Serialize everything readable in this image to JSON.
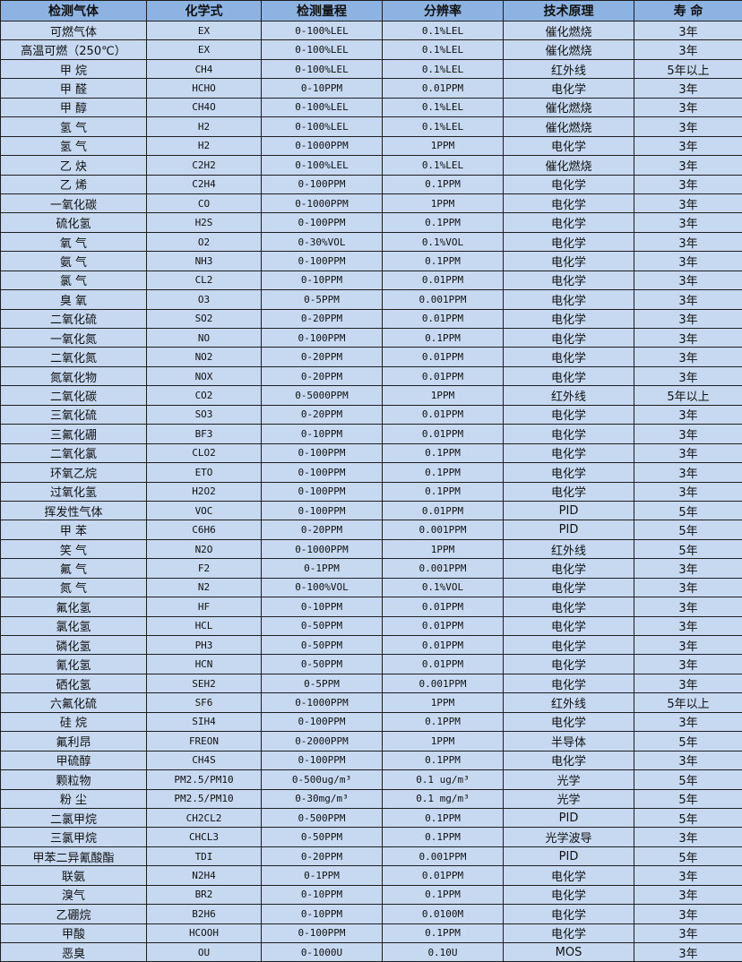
{
  "headers": [
    "检测气体",
    "化学式",
    "检测量程",
    "分辨率",
    "技术原理",
    "寿 命"
  ],
  "rows": [
    [
      "可燃气体",
      "EX",
      "0-100%LEL",
      "0.1%LEL",
      "催化燃烧",
      "3年"
    ],
    [
      "高温可燃（250℃）",
      "EX",
      "0-100%LEL",
      "0.1%LEL",
      "催化燃烧",
      "3年"
    ],
    [
      "甲 烷",
      "CH4",
      "0-100%LEL",
      "0.1%LEL",
      "红外线",
      "5年以上"
    ],
    [
      "甲 醛",
      "HCHO",
      "0-10PPM",
      "0.01PPM",
      "电化学",
      "3年"
    ],
    [
      "甲 醇",
      "CH4O",
      "0-100%LEL",
      "0.1%LEL",
      "催化燃烧",
      "3年"
    ],
    [
      "氢 气",
      "H2",
      "0-100%LEL",
      "0.1%LEL",
      "催化燃烧",
      "3年"
    ],
    [
      "氢 气",
      "H2",
      "0-1000PPM",
      "1PPM",
      "电化学",
      "3年"
    ],
    [
      "乙 炔",
      "C2H2",
      "0-100%LEL",
      "0.1%LEL",
      "催化燃烧",
      "3年"
    ],
    [
      "乙 烯",
      "C2H4",
      "0-100PPM",
      "0.1PPM",
      "电化学",
      "3年"
    ],
    [
      "一氧化碳",
      "CO",
      "0-1000PPM",
      "1PPM",
      "电化学",
      "3年"
    ],
    [
      "硫化氢",
      "H2S",
      "0-100PPM",
      "0.1PPM",
      "电化学",
      "3年"
    ],
    [
      "氧 气",
      "O2",
      "0-30%VOL",
      "0.1%VOL",
      "电化学",
      "3年"
    ],
    [
      "氨 气",
      "NH3",
      "0-100PPM",
      "0.1PPM",
      "电化学",
      "3年"
    ],
    [
      "氯 气",
      "CL2",
      "0-10PPM",
      "0.01PPM",
      "电化学",
      "3年"
    ],
    [
      "臭 氧",
      "O3",
      "0-5PPM",
      "0.001PPM",
      "电化学",
      "3年"
    ],
    [
      "二氧化硫",
      "SO2",
      "0-20PPM",
      "0.01PPM",
      "电化学",
      "3年"
    ],
    [
      "一氧化氮",
      "NO",
      "0-100PPM",
      "0.1PPM",
      "电化学",
      "3年"
    ],
    [
      "二氧化氮",
      "NO2",
      "0-20PPM",
      "0.01PPM",
      "电化学",
      "3年"
    ],
    [
      "氮氧化物",
      "NOX",
      "0-20PPM",
      "0.01PPM",
      "电化学",
      "3年"
    ],
    [
      "二氧化碳",
      "CO2",
      "0-5000PPM",
      "1PPM",
      "红外线",
      "5年以上"
    ],
    [
      "三氧化硫",
      "SO3",
      "0-20PPM",
      "0.01PPM",
      "电化学",
      "3年"
    ],
    [
      "三氟化硼",
      "BF3",
      "0-10PPM",
      "0.01PPM",
      "电化学",
      "3年"
    ],
    [
      "二氧化氯",
      "CLO2",
      "0-100PPM",
      "0.1PPM",
      "电化学",
      "3年"
    ],
    [
      "环氧乙烷",
      "ETO",
      "0-100PPM",
      "0.1PPM",
      "电化学",
      "3年"
    ],
    [
      "过氧化氢",
      "H2O2",
      "0-100PPM",
      "0.1PPM",
      "电化学",
      "3年"
    ],
    [
      "挥发性气体",
      "VOC",
      "0-100PPM",
      "0.01PPM",
      "PID",
      "5年"
    ],
    [
      "甲 苯",
      "C6H6",
      "0-20PPM",
      "0.001PPM",
      "PID",
      "5年"
    ],
    [
      "笑 气",
      "N2O",
      "0-1000PPM",
      "1PPM",
      "红外线",
      "5年"
    ],
    [
      "氟 气",
      "F2",
      "0-1PPM",
      "0.001PPM",
      "电化学",
      "3年"
    ],
    [
      "氮 气",
      "N2",
      "0-100%VOL",
      "0.1%VOL",
      "电化学",
      "3年"
    ],
    [
      "氟化氢",
      "HF",
      "0-10PPM",
      "0.01PPM",
      "电化学",
      "3年"
    ],
    [
      "氯化氢",
      "HCL",
      "0-50PPM",
      "0.01PPM",
      "电化学",
      "3年"
    ],
    [
      "磷化氢",
      "PH3",
      "0-50PPM",
      "0.01PPM",
      "电化学",
      "3年"
    ],
    [
      "氰化氢",
      "HCN",
      "0-50PPM",
      "0.01PPM",
      "电化学",
      "3年"
    ],
    [
      "硒化氢",
      "SEH2",
      "0-5PPM",
      "0.001PPM",
      "电化学",
      "3年"
    ],
    [
      "六氟化硫",
      "SF6",
      "0-1000PPM",
      "1PPM",
      "红外线",
      "5年以上"
    ],
    [
      "硅 烷",
      "SIH4",
      "0-100PPM",
      "0.1PPM",
      "电化学",
      "3年"
    ],
    [
      "氟利昂",
      "FREON",
      "0-2000PPM",
      "1PPM",
      "半导体",
      "5年"
    ],
    [
      "甲硫醇",
      "CH4S",
      "0-100PPM",
      "0.1PPM",
      "电化学",
      "3年"
    ],
    [
      "颗粒物",
      "PM2.5/PM10",
      "0-500ug/m³",
      "0.1 ug/m³",
      "光学",
      "5年"
    ],
    [
      "粉 尘",
      "PM2.5/PM10",
      "0-30mg/m³",
      "0.1 mg/m³",
      "光学",
      "5年"
    ],
    [
      "二氯甲烷",
      "CH2CL2",
      "0-500PPM",
      "0.1PPM",
      "PID",
      "5年"
    ],
    [
      "三氯甲烷",
      "CHCL3",
      "0-50PPM",
      "0.1PPM",
      "光学波导",
      "3年"
    ],
    [
      "甲苯二异氰酸酯",
      "TDI",
      "0-20PPM",
      "0.001PPM",
      "PID",
      "5年"
    ],
    [
      "联氨",
      "N2H4",
      "0-1PPM",
      "0.01PPM",
      "电化学",
      "3年"
    ],
    [
      "溴气",
      "BR2",
      "0-10PPM",
      "0.1PPM",
      "电化学",
      "3年"
    ],
    [
      "乙硼烷",
      "B2H6",
      "0-10PPM",
      "0.0100M",
      "电化学",
      "3年"
    ],
    [
      "甲酸",
      "HCOOH",
      "0-100PPM",
      "0.1PPM",
      "电化学",
      "3年"
    ],
    [
      "恶臭",
      "OU",
      "0-1000U",
      "0.10U",
      "MOS",
      "3年"
    ]
  ],
  "colors": {
    "header_bg": "#8db3e2",
    "row_bg": "#c6d9f0",
    "border": "#1f1f1f"
  }
}
